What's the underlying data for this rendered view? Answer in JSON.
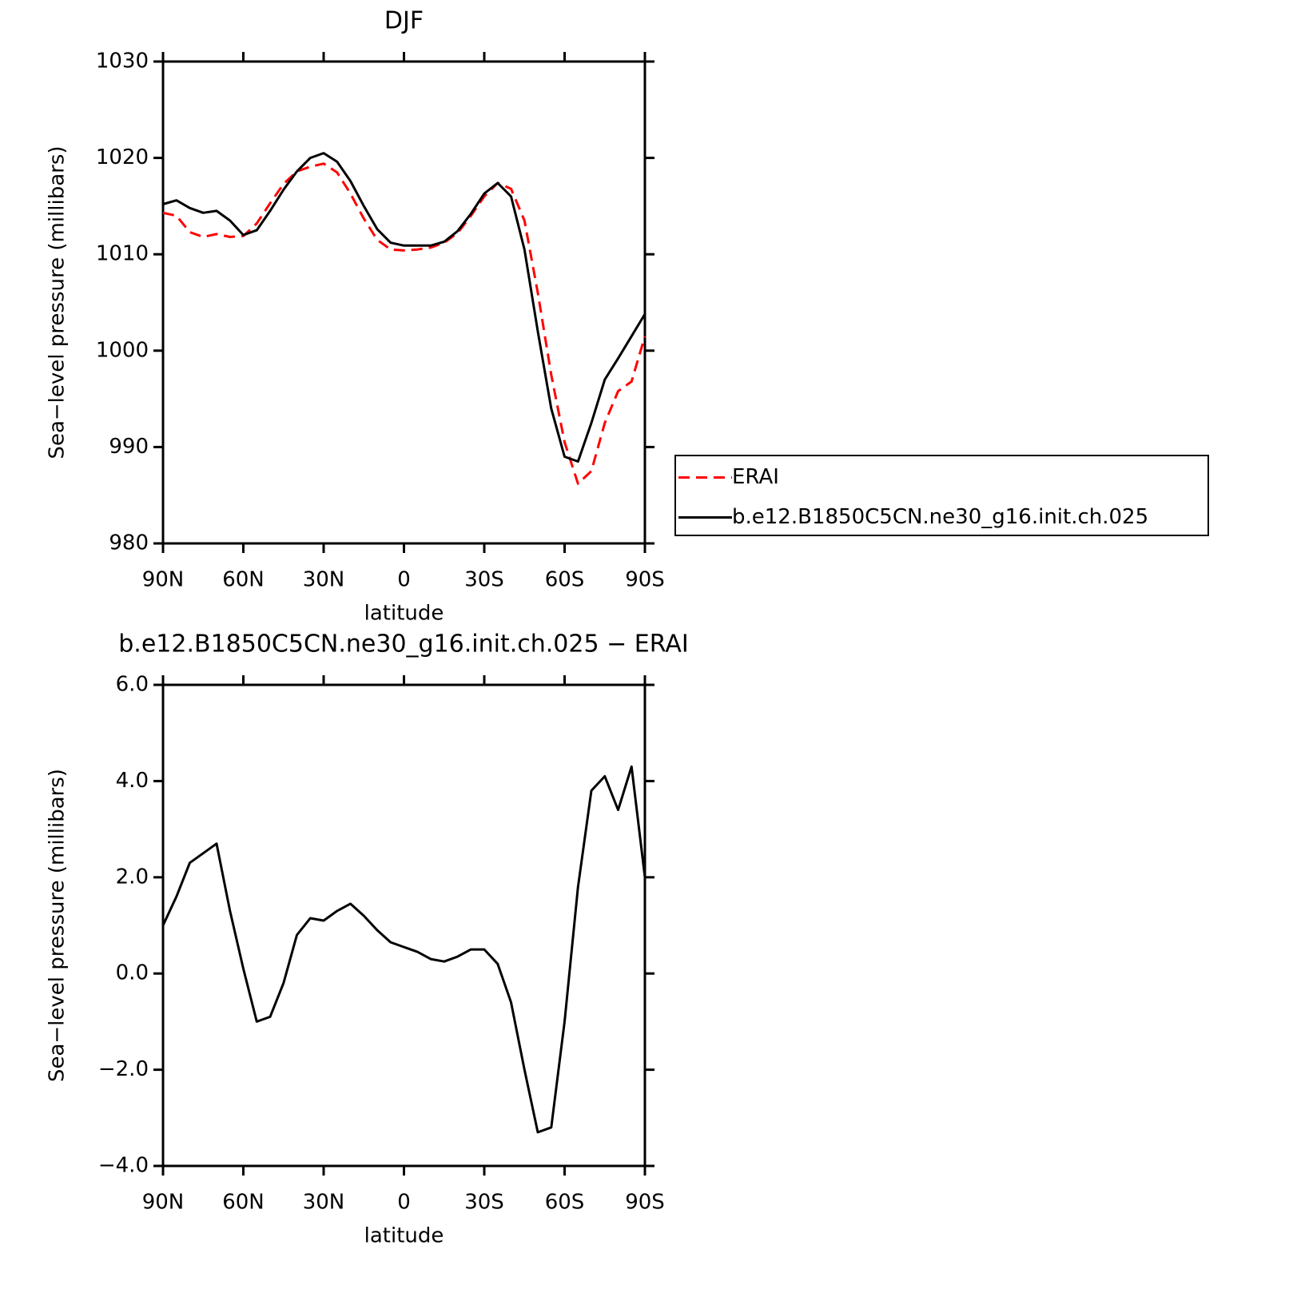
{
  "chart_data": [
    {
      "type": "line",
      "title": "DJF",
      "xlabel": "latitude",
      "ylabel": "Sea−level pressure (millibars)",
      "x": [
        90,
        85,
        80,
        75,
        70,
        65,
        60,
        55,
        50,
        45,
        40,
        35,
        30,
        25,
        20,
        15,
        10,
        5,
        0,
        -5,
        -10,
        -15,
        -20,
        -25,
        -30,
        -35,
        -40,
        -45,
        -50,
        -55,
        -60,
        -65,
        -70,
        -75,
        -80,
        -85,
        -90
      ],
      "xlim": [
        90,
        -90
      ],
      "xticks": [
        {
          "value": 90,
          "label": "90N"
        },
        {
          "value": 60,
          "label": "60N"
        },
        {
          "value": 30,
          "label": "30N"
        },
        0,
        {
          "value": -30,
          "label": "30S"
        },
        {
          "value": -60,
          "label": "60S"
        },
        {
          "value": -90,
          "label": "90S"
        }
      ],
      "ylim": [
        980,
        1030
      ],
      "yticks": [
        980,
        990,
        1000,
        1010,
        1020,
        1030
      ],
      "legend": "right",
      "series": [
        {
          "name": "ERAI",
          "color": "#ff0000",
          "linestyle": "dashed",
          "values": [
            1014.3,
            1014.0,
            1012.3,
            1011.8,
            1012.1,
            1011.8,
            1011.9,
            1013.2,
            1015.3,
            1017.3,
            1018.6,
            1019.1,
            1019.4,
            1018.5,
            1016.3,
            1013.7,
            1011.5,
            1010.5,
            1010.4,
            1010.5,
            1010.7,
            1011.2,
            1012.2,
            1014.0,
            1016.0,
            1017.4,
            1016.8,
            1013.5,
            1006.0,
            997.5,
            990.5,
            986.2,
            987.5,
            992.5,
            995.8,
            996.8,
            1001.5
          ]
        },
        {
          "name": "b.e12.B1850C5CN.ne30_g16.init.ch.025",
          "color": "#000000",
          "linestyle": "solid",
          "values": [
            1015.2,
            1015.6,
            1014.8,
            1014.3,
            1014.5,
            1013.5,
            1012.0,
            1012.5,
            1014.5,
            1016.7,
            1018.6,
            1020.0,
            1020.5,
            1019.6,
            1017.6,
            1015.0,
            1012.6,
            1011.2,
            1010.9,
            1010.9,
            1010.9,
            1011.3,
            1012.4,
            1014.2,
            1016.3,
            1017.4,
            1016.0,
            1010.5,
            1002.0,
            994.0,
            989.0,
            988.5,
            992.5,
            997.0,
            999.2,
            1001.5,
            1003.8
          ]
        }
      ]
    },
    {
      "type": "line",
      "title": "b.e12.B1850C5CN.ne30_g16.init.ch.025 − ERAI",
      "xlabel": "latitude",
      "ylabel": "Sea−level pressure (millibars)",
      "x": [
        90,
        85,
        80,
        75,
        70,
        65,
        60,
        55,
        50,
        45,
        40,
        35,
        30,
        25,
        20,
        15,
        10,
        5,
        0,
        -5,
        -10,
        -15,
        -20,
        -25,
        -30,
        -35,
        -40,
        -45,
        -50,
        -55,
        -60,
        -65,
        -70,
        -75,
        -80,
        -85,
        -90
      ],
      "xlim": [
        90,
        -90
      ],
      "xticks": [
        {
          "value": 90,
          "label": "90N"
        },
        {
          "value": 60,
          "label": "60N"
        },
        {
          "value": 30,
          "label": "30N"
        },
        0,
        {
          "value": -30,
          "label": "30S"
        },
        {
          "value": -60,
          "label": "60S"
        },
        {
          "value": -90,
          "label": "90S"
        }
      ],
      "ylim": [
        -4,
        6
      ],
      "yticks": [
        {
          "value": -4,
          "label": "−4.0"
        },
        {
          "value": -2,
          "label": "−2.0"
        },
        {
          "value": 0,
          "label": "0.0"
        },
        {
          "value": 2,
          "label": "2.0"
        },
        {
          "value": 4,
          "label": "4.0"
        },
        {
          "value": 6,
          "label": "6.0"
        }
      ],
      "color": "#000000",
      "linestyle": "solid",
      "values": [
        1.0,
        1.6,
        2.3,
        2.5,
        2.7,
        1.3,
        0.1,
        -1.0,
        -0.9,
        -0.2,
        0.8,
        1.15,
        1.1,
        1.3,
        1.45,
        1.2,
        0.9,
        0.65,
        0.55,
        0.45,
        0.3,
        0.25,
        0.35,
        0.5,
        0.5,
        0.2,
        -0.6,
        -2.0,
        -3.3,
        -3.2,
        -1.0,
        1.8,
        3.8,
        4.1,
        3.4,
        4.3,
        2.0
      ]
    }
  ]
}
